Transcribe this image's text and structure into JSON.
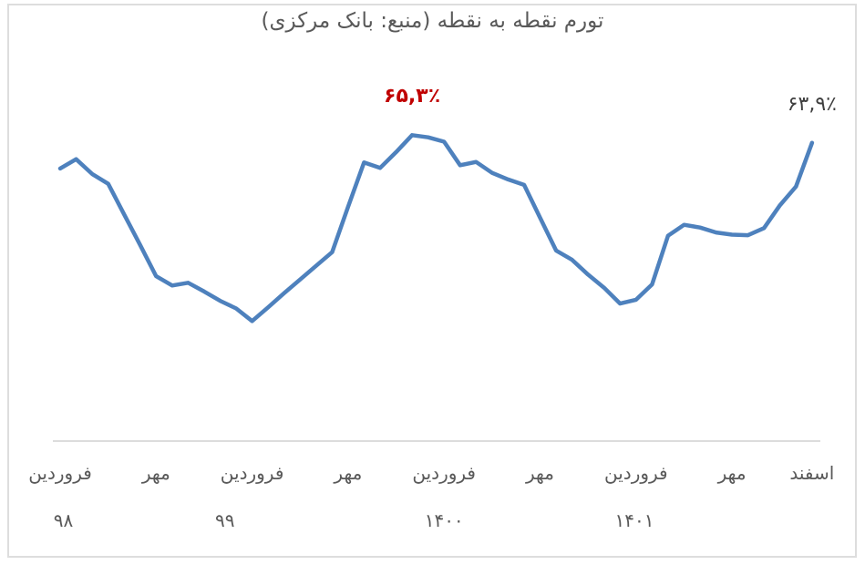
{
  "title": "تورم نقطه به نقطه (منبع: بانک مرکزی)",
  "colors": {
    "line": "#4e81bd",
    "peak_label": "#c00000",
    "end_label": "#3f3f3f",
    "axis": "#dcdcdc",
    "text": "#595959"
  },
  "chart_data": {
    "type": "line",
    "title": "تورم نقطه به نقطه (منبع: بانک مرکزی)",
    "ylabel": "",
    "xlabel": "",
    "unit": "٪",
    "grid": false,
    "legend": false,
    "x_description": "48 monthly points, Farvardin 1398 to Esfand 1401",
    "value_range_estimate": [
      25,
      70
    ],
    "values": [
      59.2,
      60.9,
      58.2,
      56.4,
      50.8,
      45.2,
      39.5,
      37.8,
      38.3,
      36.7,
      35.0,
      33.6,
      31.3,
      33.8,
      36.4,
      38.9,
      41.4,
      43.9,
      52.2,
      60.3,
      59.3,
      62.2,
      65.3,
      64.9,
      64.1,
      59.8,
      60.4,
      58.4,
      57.2,
      56.2,
      50.2,
      44.2,
      42.5,
      39.8,
      37.4,
      34.5,
      35.2,
      38.0,
      46.9,
      48.9,
      48.4,
      47.5,
      47.1,
      47.0,
      48.3,
      52.5,
      55.9,
      63.9
    ],
    "x_ticks": [
      {
        "label": "فروردین",
        "month_index": 0
      },
      {
        "label": "مهر",
        "month_index": 6
      },
      {
        "label": "فروردین",
        "month_index": 12
      },
      {
        "label": "مهر",
        "month_index": 18
      },
      {
        "label": "فروردین",
        "month_index": 24
      },
      {
        "label": "مهر",
        "month_index": 30
      },
      {
        "label": "فروردین",
        "month_index": 36
      },
      {
        "label": "مهر",
        "month_index": 42
      },
      {
        "label": "اسفند",
        "month_index": 47
      }
    ],
    "year_labels": [
      {
        "label": "۹۸",
        "month_index": 0.2
      },
      {
        "label": "۹۹",
        "month_index": 10.3
      },
      {
        "label": "۱۴۰۰",
        "month_index": 24.0
      },
      {
        "label": "۱۴۰۱",
        "month_index": 35.9
      }
    ],
    "annotations": [
      {
        "text": "۶۵,۳٪",
        "value": 65.3,
        "month_index": 22,
        "style": "peak"
      },
      {
        "text": "۶۳,۹٪",
        "value": 63.9,
        "month_index": 47,
        "style": "end"
      }
    ]
  }
}
